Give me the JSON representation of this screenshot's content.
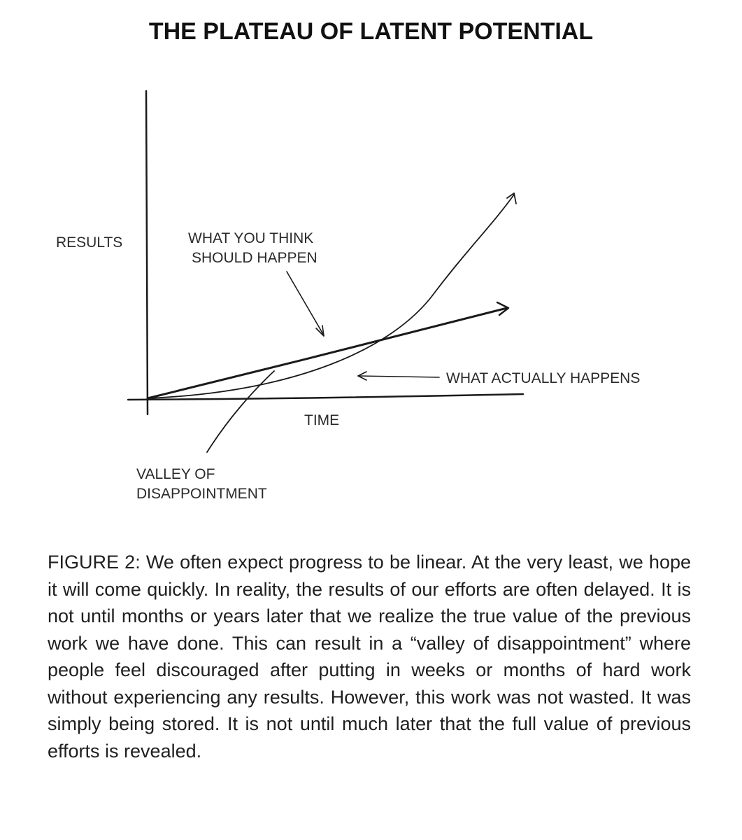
{
  "title": "THE PLATEAU OF LATENT POTENTIAL",
  "diagram": {
    "y_axis_label": "RESULTS",
    "x_axis_label": "TIME",
    "expectation_label": [
      "WHAT YOU THINK",
      "SHOULD HAPPEN"
    ],
    "reality_label": "WHAT ACTUALLY HAPPENS",
    "valley_label": [
      "VALLEY OF",
      "DISAPPOINTMENT"
    ]
  },
  "caption": {
    "text": "FIGURE 2: We often expect progress to be linear. At the very least, we hope it will come quickly. In reality, the results of our efforts are often delayed. It is not until months or years later that we realize the true value of the previous work we have done. This can result in a “valley of disappointment” where people feel dis­couraged after putting in weeks or months of hard work without experiencing any results. However, this work was not wasted. It was simply being stored. It is not until much later that the full value of previous efforts is revealed."
  }
}
